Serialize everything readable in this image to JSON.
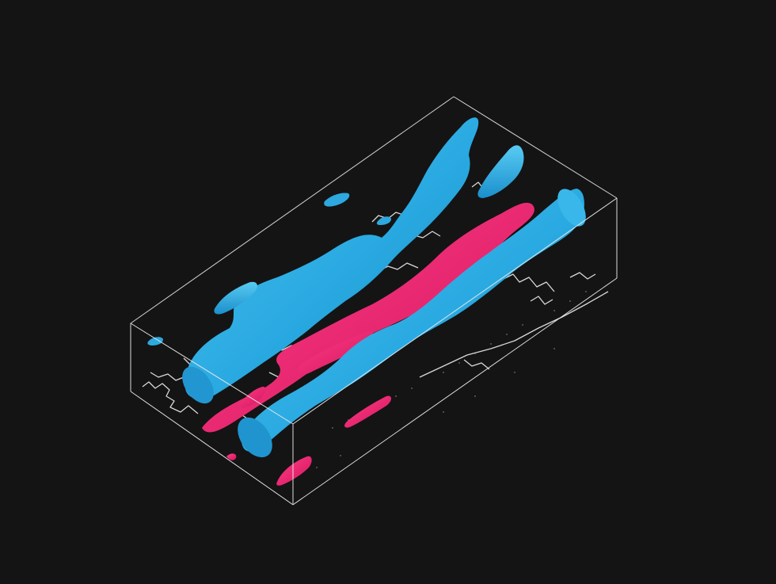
{
  "scene": {
    "background_color": "#141414",
    "box_color": "#e8e8e8",
    "coastline_color": "#d9d9d9",
    "positive_isosurface_color": "#29a9e1",
    "negative_isosurface_color": "#f0206e"
  }
}
